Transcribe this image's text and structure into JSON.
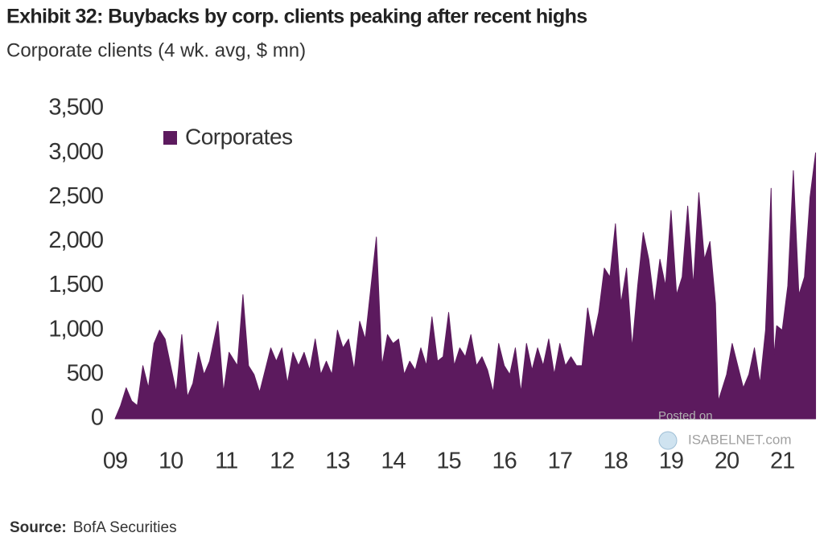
{
  "chart_data": {
    "type": "area",
    "title": "Exhibit 32: Buybacks by corp. clients peaking after recent highs",
    "subtitle": "Corporate clients (4 wk. avg, $ mn)",
    "source_label": "Source:",
    "source": "BofA Securities",
    "watermark": [
      "Posted on",
      "ISABELNET.com"
    ],
    "x": [
      2009.0,
      2009.1,
      2009.2,
      2009.3,
      2009.4,
      2009.5,
      2009.6,
      2009.7,
      2009.8,
      2009.9,
      2010.0,
      2010.1,
      2010.2,
      2010.3,
      2010.4,
      2010.5,
      2010.6,
      2010.7,
      2010.85,
      2010.95,
      2011.05,
      2011.2,
      2011.3,
      2011.4,
      2011.5,
      2011.6,
      2011.7,
      2011.8,
      2011.9,
      2012.0,
      2012.1,
      2012.2,
      2012.3,
      2012.4,
      2012.5,
      2012.6,
      2012.7,
      2012.8,
      2012.9,
      2013.0,
      2013.1,
      2013.2,
      2013.3,
      2013.4,
      2013.5,
      2013.7,
      2013.8,
      2013.9,
      2014.0,
      2014.1,
      2014.2,
      2014.3,
      2014.4,
      2014.5,
      2014.6,
      2014.7,
      2014.8,
      2014.9,
      2015.0,
      2015.1,
      2015.2,
      2015.3,
      2015.4,
      2015.5,
      2015.6,
      2015.7,
      2015.8,
      2015.9,
      2016.0,
      2016.1,
      2016.2,
      2016.3,
      2016.4,
      2016.5,
      2016.6,
      2016.7,
      2016.8,
      2016.9,
      2017.0,
      2017.1,
      2017.2,
      2017.3,
      2017.4,
      2017.5,
      2017.6,
      2017.7,
      2017.8,
      2017.9,
      2018.0,
      2018.1,
      2018.2,
      2018.3,
      2018.4,
      2018.5,
      2018.6,
      2018.7,
      2018.8,
      2018.9,
      2019.0,
      2019.1,
      2019.2,
      2019.3,
      2019.4,
      2019.5,
      2019.6,
      2019.7,
      2019.8,
      2019.85,
      2019.9,
      2020.0,
      2020.1,
      2020.2,
      2020.3,
      2020.4,
      2020.5,
      2020.6,
      2020.7,
      2020.8,
      2020.85,
      2020.9,
      2021.0,
      2021.1,
      2021.2,
      2021.3,
      2021.4,
      2021.5,
      2021.6
    ],
    "series": [
      {
        "name": "Corporates",
        "color": "#5c1a5e",
        "values": [
          0,
          150,
          350,
          200,
          150,
          600,
          350,
          850,
          1000,
          900,
          600,
          300,
          950,
          250,
          400,
          750,
          500,
          650,
          1100,
          300,
          750,
          600,
          1400,
          600,
          500,
          300,
          550,
          800,
          650,
          800,
          400,
          750,
          600,
          750,
          550,
          900,
          500,
          650,
          500,
          1000,
          800,
          900,
          550,
          1100,
          900,
          2050,
          600,
          950,
          850,
          900,
          500,
          650,
          550,
          800,
          600,
          1150,
          650,
          700,
          1200,
          600,
          800,
          700,
          950,
          600,
          700,
          550,
          300,
          850,
          600,
          500,
          800,
          300,
          850,
          550,
          800,
          600,
          900,
          500,
          850,
          600,
          700,
          600,
          600,
          1250,
          900,
          1200,
          1700,
          1600,
          2200,
          1300,
          1700,
          800,
          1500,
          2100,
          1800,
          1300,
          1800,
          1500,
          2350,
          1400,
          1600,
          2400,
          1500,
          2550,
          1800,
          2000,
          1300,
          200,
          300,
          500,
          850,
          600,
          350,
          500,
          800,
          400,
          1000,
          2600,
          700,
          1050,
          1000,
          1500,
          2800,
          1400,
          1600,
          2500,
          3000
        ]
      }
    ],
    "xlim": [
      2009,
      2021.65
    ],
    "xticks": [
      {
        "value": 2009,
        "label": "09"
      },
      {
        "value": 2010,
        "label": "10"
      },
      {
        "value": 2011,
        "label": "11"
      },
      {
        "value": 2012,
        "label": "12"
      },
      {
        "value": 2013,
        "label": "13"
      },
      {
        "value": 2014,
        "label": "14"
      },
      {
        "value": 2015,
        "label": "15"
      },
      {
        "value": 2016,
        "label": "16"
      },
      {
        "value": 2017,
        "label": "17"
      },
      {
        "value": 2018,
        "label": "18"
      },
      {
        "value": 2019,
        "label": "19"
      },
      {
        "value": 2020,
        "label": "20"
      },
      {
        "value": 2021,
        "label": "21"
      }
    ],
    "ylim": [
      0,
      3500
    ],
    "yticks": [
      0,
      500,
      {
        "value": 1000,
        "label": "1,000"
      },
      {
        "value": 1500,
        "label": "1,500"
      },
      {
        "value": 2000,
        "label": "2,000"
      },
      {
        "value": 2500,
        "label": "2,500"
      },
      {
        "value": 3000,
        "label": "3,000"
      },
      {
        "value": 3500,
        "label": "3,500"
      }
    ],
    "grid": false,
    "legend": "upper left"
  }
}
